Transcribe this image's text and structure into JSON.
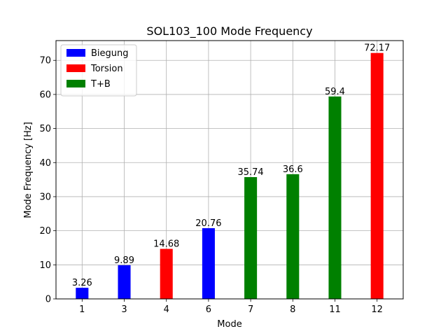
{
  "chart_data": {
    "type": "bar",
    "title": "SOL103_100 Mode Frequency",
    "xlabel": "Mode",
    "ylabel": "Mode Frequency [Hz]",
    "ylim": [
      0,
      75.8
    ],
    "yticks": [
      0,
      10,
      20,
      30,
      40,
      50,
      60,
      70
    ],
    "grid": true,
    "legend_position": "top-left",
    "categories": [
      "1",
      "3",
      "4",
      "6",
      "7",
      "8",
      "11",
      "12"
    ],
    "values": [
      3.26,
      9.89,
      14.68,
      20.76,
      35.74,
      36.6,
      59.4,
      72.17
    ],
    "data_labels": [
      "3.26",
      "9.89",
      "14.68",
      "20.76",
      "35.74",
      "36.6",
      "59.4",
      "72.17"
    ],
    "bar_groups": [
      "Biegung",
      "Biegung",
      "Torsion",
      "Biegung",
      "T+B",
      "T+B",
      "T+B",
      "Torsion"
    ],
    "legend": [
      {
        "name": "Biegung",
        "color": "#0000ff"
      },
      {
        "name": "Torsion",
        "color": "#ff0000"
      },
      {
        "name": "T+B",
        "color": "#008000"
      }
    ]
  }
}
